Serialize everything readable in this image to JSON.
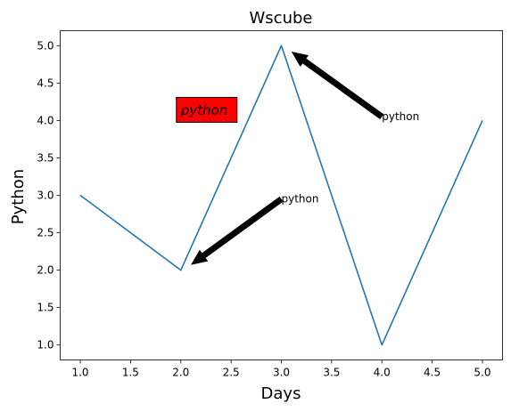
{
  "chart_data": {
    "type": "line",
    "title": "Wscube",
    "xlabel": "Days",
    "ylabel": "Python",
    "x": [
      1,
      2,
      3,
      4,
      5
    ],
    "series": [
      {
        "values": [
          3,
          2,
          5,
          1,
          4
        ],
        "color": "#1f77b4"
      }
    ],
    "xlim": [
      0.8,
      5.2
    ],
    "ylim": [
      0.8,
      5.2
    ],
    "x_ticks": [
      1.0,
      1.5,
      2.0,
      2.5,
      3.0,
      3.5,
      4.0,
      4.5,
      5.0
    ],
    "x_tick_labels": [
      "1.0",
      "1.5",
      "2.0",
      "2.5",
      "3.0",
      "3.5",
      "4.0",
      "4.5",
      "5.0"
    ],
    "y_ticks": [
      1.0,
      1.5,
      2.0,
      2.5,
      3.0,
      3.5,
      4.0,
      4.5,
      5.0
    ],
    "y_tick_labels": [
      "1.0",
      "1.5",
      "2.0",
      "2.5",
      "3.0",
      "3.5",
      "4.0",
      "4.5",
      "5.0"
    ],
    "grid": false,
    "annotations": [
      {
        "text": "python",
        "xy": [
          3.1,
          4.92
        ],
        "xytext": [
          4.0,
          4.05
        ]
      },
      {
        "text": "python",
        "xy": [
          2.1,
          2.07
        ],
        "xytext": [
          3.0,
          2.95
        ]
      }
    ],
    "text_box": {
      "text": "python",
      "x": 2.0,
      "y": 4.0,
      "background": "#ff0000",
      "italic": true
    }
  }
}
